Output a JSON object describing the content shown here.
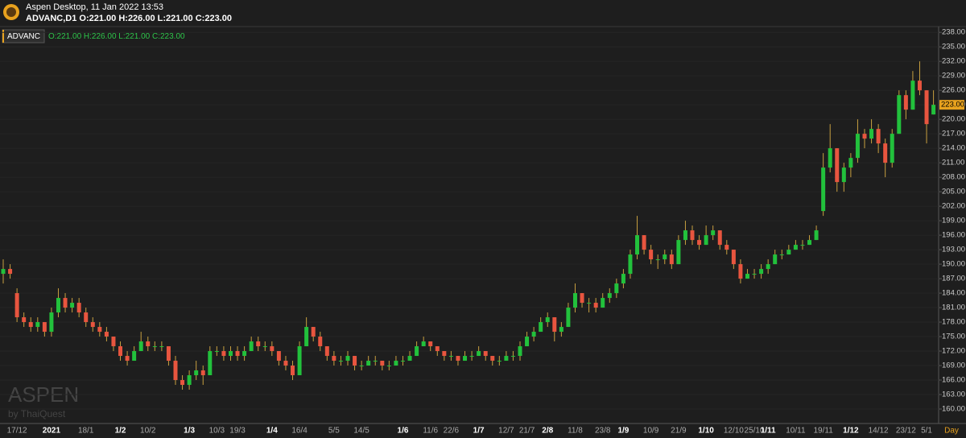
{
  "header": {
    "app_title": "Aspen Desktop, 11 Jan 2022 13:53",
    "symbol_line": "ADVANC,D1 O:221.00 H:226.00 L:221.00 C:223.00"
  },
  "watermark": {
    "brand": "ASPEN",
    "by": "by ThaiQuest"
  },
  "chart_data": {
    "type": "candlestick",
    "symbol": "ADVANC",
    "ohlc_text": "O:221.00 H:226.00 L:221.00 C:223.00",
    "timeframe": "Day",
    "up_color": "#22c13c",
    "down_color": "#e8553f",
    "wick_color": "#c8a040",
    "grid": true,
    "last_price": {
      "value": 223,
      "label": "223.00"
    },
    "ylim": [
      157,
      239.2
    ],
    "yticks": [
      {
        "value": 160,
        "label": "160.00"
      },
      {
        "value": 163,
        "label": "163.00"
      },
      {
        "value": 166,
        "label": "166.00"
      },
      {
        "value": 169,
        "label": "169.00"
      },
      {
        "value": 172,
        "label": "172.00"
      },
      {
        "value": 175,
        "label": "175.00"
      },
      {
        "value": 178,
        "label": "178.00"
      },
      {
        "value": 181,
        "label": "181.00"
      },
      {
        "value": 184,
        "label": "184.00"
      },
      {
        "value": 187,
        "label": "187.00"
      },
      {
        "value": 190,
        "label": "190.00"
      },
      {
        "value": 193,
        "label": "193.00"
      },
      {
        "value": 196,
        "label": "196.00"
      },
      {
        "value": 199,
        "label": "199.00"
      },
      {
        "value": 202,
        "label": "202.00"
      },
      {
        "value": 205,
        "label": "205.00"
      },
      {
        "value": 208,
        "label": "208.00"
      },
      {
        "value": 211,
        "label": "211.00"
      },
      {
        "value": 214,
        "label": "214.00"
      },
      {
        "value": 217,
        "label": "217.00"
      },
      {
        "value": 220,
        "label": "220.00"
      },
      {
        "value": 223,
        "label": "223.00"
      },
      {
        "value": 226,
        "label": "226.00"
      },
      {
        "value": 229,
        "label": "229.00"
      },
      {
        "value": 232,
        "label": "232.00"
      },
      {
        "value": 235,
        "label": "235.00"
      },
      {
        "value": 238,
        "label": "238.00"
      }
    ],
    "categories": [
      null,
      null,
      "17/12",
      null,
      null,
      null,
      null,
      "2021",
      null,
      null,
      null,
      null,
      "18/1",
      null,
      null,
      null,
      null,
      "1/2",
      null,
      null,
      null,
      "10/2",
      null,
      null,
      null,
      null,
      null,
      "1/3",
      null,
      null,
      null,
      "10/3",
      null,
      null,
      "19/3",
      null,
      null,
      null,
      null,
      "1/4",
      null,
      null,
      null,
      "16/4",
      null,
      null,
      null,
      null,
      "5/5",
      null,
      null,
      null,
      "14/5",
      null,
      null,
      null,
      null,
      null,
      "1/6",
      null,
      null,
      null,
      "11/6",
      null,
      null,
      "22/6",
      null,
      null,
      null,
      "1/7",
      null,
      null,
      null,
      "12/7",
      null,
      null,
      "21/7",
      null,
      null,
      "2/8",
      null,
      null,
      null,
      "11/8",
      null,
      null,
      null,
      "23/8",
      null,
      null,
      "1/9",
      null,
      null,
      null,
      "10/9",
      null,
      null,
      null,
      "21/9",
      null,
      null,
      null,
      "1/10",
      null,
      null,
      null,
      "12/10",
      null,
      null,
      "25/10",
      null,
      "1/11",
      null,
      null,
      null,
      "10/11",
      null,
      null,
      null,
      "19/11",
      null,
      null,
      null,
      "1/12",
      null,
      null,
      null,
      "14/12",
      null,
      null,
      null,
      "23/12",
      null,
      null,
      "5/1",
      null
    ],
    "values": [
      [
        188,
        191,
        186,
        189
      ],
      [
        189,
        190,
        187,
        188
      ],
      [
        184,
        185,
        178,
        179
      ],
      [
        179,
        180,
        177,
        178
      ],
      [
        178,
        179,
        176,
        177
      ],
      [
        177,
        179,
        176,
        178
      ],
      [
        178,
        178,
        175,
        176
      ],
      [
        176,
        181,
        175,
        180
      ],
      [
        180,
        185,
        179,
        183
      ],
      [
        183,
        184,
        180,
        181
      ],
      [
        181,
        183,
        180,
        182
      ],
      [
        182,
        183,
        179,
        180
      ],
      [
        180,
        181,
        177,
        178
      ],
      [
        178,
        179,
        176,
        177
      ],
      [
        177,
        178,
        175,
        176
      ],
      [
        176,
        177,
        174,
        175
      ],
      [
        175,
        175,
        172,
        173
      ],
      [
        173,
        174,
        170,
        171
      ],
      [
        171,
        172,
        169,
        170
      ],
      [
        170,
        173,
        170,
        172
      ],
      [
        172,
        176,
        172,
        174
      ],
      [
        174,
        175,
        172,
        173
      ],
      [
        173,
        174,
        172,
        173
      ],
      [
        173,
        174,
        172,
        173
      ],
      [
        173,
        173,
        169,
        170
      ],
      [
        170,
        171,
        165,
        166
      ],
      [
        166,
        167,
        164,
        165
      ],
      [
        165,
        168,
        164,
        167
      ],
      [
        167,
        170,
        166,
        168
      ],
      [
        168,
        169,
        165,
        167
      ],
      [
        167,
        173,
        167,
        172
      ],
      [
        172,
        173,
        171,
        172
      ],
      [
        172,
        173,
        170,
        171
      ],
      [
        171,
        173,
        170,
        172
      ],
      [
        172,
        173,
        170,
        171
      ],
      [
        171,
        173,
        170,
        172
      ],
      [
        172,
        175,
        172,
        174
      ],
      [
        174,
        175,
        172,
        173
      ],
      [
        173,
        174,
        172,
        173
      ],
      [
        173,
        174,
        171,
        172
      ],
      [
        172,
        172,
        169,
        170
      ],
      [
        170,
        171,
        168,
        169
      ],
      [
        169,
        170,
        166,
        167
      ],
      [
        167,
        174,
        167,
        173
      ],
      [
        173,
        179,
        173,
        177
      ],
      [
        177,
        177,
        174,
        175
      ],
      [
        175,
        176,
        172,
        173
      ],
      [
        173,
        173,
        170,
        171
      ],
      [
        171,
        172,
        169,
        170
      ],
      [
        170,
        171,
        169,
        170
      ],
      [
        170,
        172,
        169,
        171
      ],
      [
        171,
        171,
        168,
        169
      ],
      [
        169,
        170,
        168,
        169
      ],
      [
        169,
        171,
        169,
        170
      ],
      [
        170,
        171,
        169,
        170
      ],
      [
        170,
        170,
        168,
        169
      ],
      [
        169,
        170,
        168,
        169
      ],
      [
        169,
        171,
        169,
        170
      ],
      [
        170,
        171,
        169,
        170
      ],
      [
        170,
        172,
        170,
        171
      ],
      [
        171,
        174,
        171,
        173
      ],
      [
        173,
        175,
        173,
        174
      ],
      [
        174,
        174,
        172,
        173
      ],
      [
        173,
        173,
        171,
        172
      ],
      [
        172,
        172,
        170,
        171
      ],
      [
        171,
        172,
        170,
        171
      ],
      [
        171,
        171,
        169,
        170
      ],
      [
        170,
        172,
        170,
        171
      ],
      [
        171,
        172,
        170,
        171
      ],
      [
        171,
        173,
        171,
        172
      ],
      [
        172,
        172,
        170,
        171
      ],
      [
        171,
        171,
        169,
        170
      ],
      [
        170,
        171,
        169,
        170
      ],
      [
        170,
        172,
        170,
        171
      ],
      [
        171,
        172,
        170,
        171
      ],
      [
        171,
        174,
        170,
        173
      ],
      [
        173,
        176,
        173,
        175
      ],
      [
        175,
        177,
        174,
        176
      ],
      [
        176,
        179,
        176,
        178
      ],
      [
        178,
        180,
        177,
        179
      ],
      [
        179,
        179,
        174,
        176
      ],
      [
        176,
        178,
        175,
        177
      ],
      [
        177,
        182,
        177,
        181
      ],
      [
        181,
        186,
        180,
        184
      ],
      [
        184,
        184,
        181,
        182
      ],
      [
        182,
        183,
        180,
        182
      ],
      [
        182,
        183,
        180,
        181
      ],
      [
        181,
        184,
        181,
        183
      ],
      [
        183,
        185,
        182,
        184
      ],
      [
        184,
        187,
        183,
        186
      ],
      [
        186,
        189,
        185,
        188
      ],
      [
        188,
        193,
        187,
        192
      ],
      [
        192,
        200,
        191,
        196
      ],
      [
        196,
        196,
        192,
        193
      ],
      [
        193,
        194,
        190,
        191
      ],
      [
        191,
        192,
        189,
        191
      ],
      [
        191,
        193,
        190,
        192
      ],
      [
        192,
        193,
        189,
        190
      ],
      [
        190,
        196,
        190,
        195
      ],
      [
        195,
        199,
        194,
        197
      ],
      [
        197,
        198,
        194,
        195
      ],
      [
        195,
        196,
        193,
        194
      ],
      [
        194,
        198,
        194,
        196
      ],
      [
        196,
        198,
        195,
        197
      ],
      [
        197,
        197,
        193,
        194
      ],
      [
        194,
        195,
        192,
        193
      ],
      [
        193,
        193,
        189,
        190
      ],
      [
        190,
        191,
        186,
        187
      ],
      [
        187,
        189,
        187,
        188
      ],
      [
        188,
        189,
        187,
        188
      ],
      [
        188,
        190,
        187,
        189
      ],
      [
        189,
        191,
        188,
        190
      ],
      [
        190,
        193,
        190,
        192
      ],
      [
        192,
        193,
        191,
        192
      ],
      [
        192,
        194,
        192,
        193
      ],
      [
        193,
        195,
        193,
        194
      ],
      [
        194,
        195,
        193,
        194
      ],
      [
        194,
        196,
        194,
        195
      ],
      [
        195,
        198,
        195,
        197
      ],
      [
        201,
        213,
        200,
        210
      ],
      [
        210,
        219,
        209,
        214
      ],
      [
        214,
        214,
        205,
        207
      ],
      [
        207,
        211,
        205,
        210
      ],
      [
        210,
        213,
        208,
        212
      ],
      [
        212,
        220,
        211,
        217
      ],
      [
        217,
        218,
        214,
        216
      ],
      [
        216,
        220,
        215,
        218
      ],
      [
        218,
        219,
        213,
        215
      ],
      [
        215,
        216,
        208,
        211
      ],
      [
        211,
        218,
        210,
        217
      ],
      [
        217,
        226,
        217,
        225
      ],
      [
        225,
        226,
        220,
        222
      ],
      [
        222,
        230,
        222,
        228
      ],
      [
        228,
        232,
        225,
        226
      ],
      [
        226,
        226,
        215,
        219
      ],
      [
        221,
        226,
        221,
        223
      ]
    ]
  }
}
